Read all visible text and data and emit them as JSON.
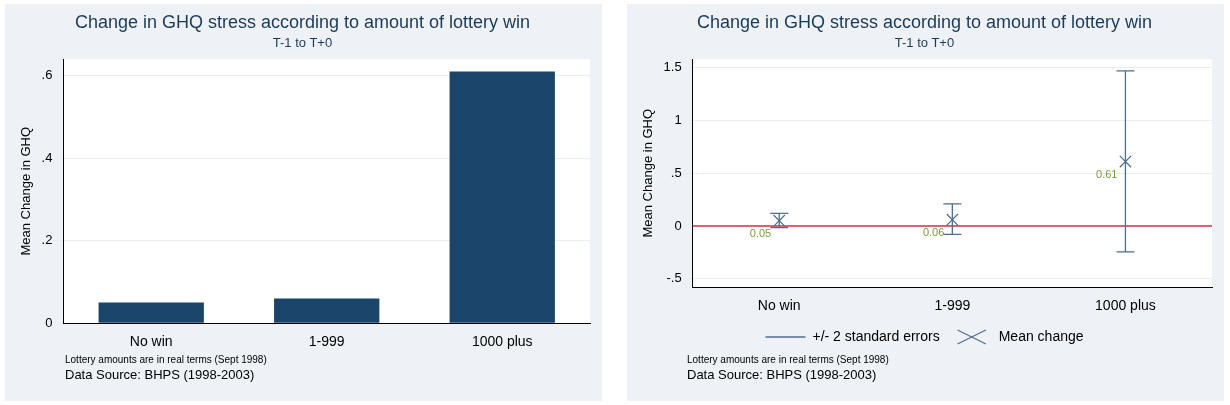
{
  "chart_data": [
    {
      "type": "bar",
      "title": "Change in GHQ stress according to amount of lottery win",
      "subtitle": "T-1 to T+0",
      "ylabel": "Mean Change in GHQ",
      "categories": [
        "No win",
        "1-999",
        "1000 plus"
      ],
      "values": [
        0.05,
        0.06,
        0.61
      ],
      "color": "#1a4469",
      "ylim": [
        0,
        0.64
      ],
      "yticks": [
        0,
        {
          "value": 0.2,
          "label": ".2"
        },
        {
          "value": 0.4,
          "label": ".4"
        },
        {
          "value": 0.6,
          "label": ".6"
        }
      ],
      "grid": "y",
      "annotations": [
        "Lottery amounts are in real terms (Sept 1998)",
        "Data Source: BHPS (1998-2003)"
      ]
    },
    {
      "type": "scatter",
      "title": "Change in GHQ stress according to amount of lottery win",
      "subtitle": "T-1 to T+0",
      "ylabel": "Mean Change in GHQ",
      "categories": [
        "No win",
        "1-999",
        "1000 plus"
      ],
      "series": [
        {
          "name": "Mean change",
          "color": "#4f6e8f",
          "marker": "cross",
          "values": [
            0.05,
            0.06,
            0.61
          ],
          "value_labels": [
            "0.05",
            "0.06",
            "0.61"
          ],
          "errors": [
            [
              -0.015,
              0.12
            ],
            [
              -0.08,
              0.21
            ],
            [
              -0.245,
              1.47
            ]
          ]
        }
      ],
      "ylim": [
        -0.58,
        1.58
      ],
      "yticks": [
        {
          "value": -0.5,
          "label": "-.5"
        },
        0,
        {
          "value": 0.5,
          "label": ".5"
        },
        1,
        1.5
      ],
      "grid": "y",
      "legend": "bottom",
      "legend_title": "+/- 2 standard errors",
      "ref_lines": [
        {
          "axis": "y",
          "value": 0,
          "color": "#d0304f"
        }
      ],
      "annotations": [
        "Lottery amounts are in real terms (Sept 1998)",
        "Data Source: BHPS (1998-2003)"
      ]
    }
  ]
}
